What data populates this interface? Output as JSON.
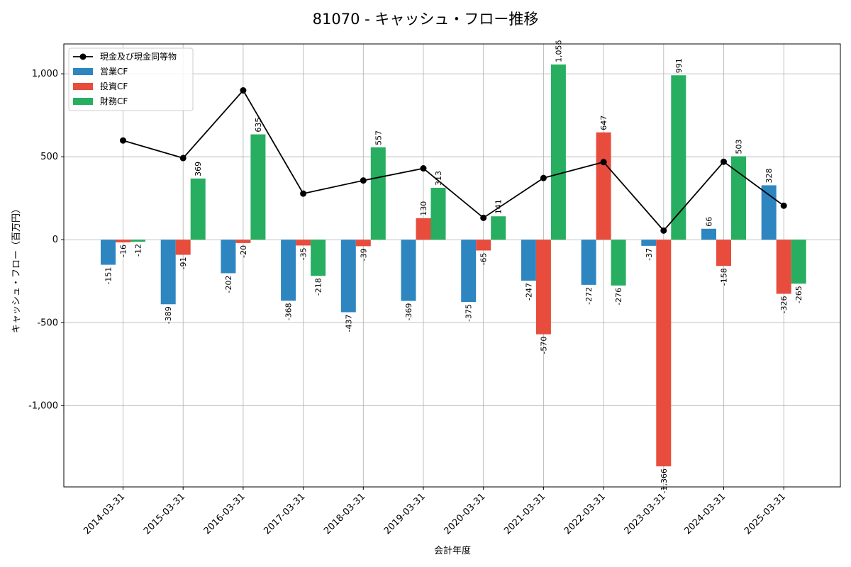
{
  "chart_data": {
    "type": "bar",
    "title": "81070 - キャッシュ・フロー推移",
    "xlabel": "会計年度",
    "ylabel": "キャッシュ・フロー（百万円）",
    "categories": [
      "2014-03-31",
      "2015-03-31",
      "2016-03-31",
      "2017-03-31",
      "2018-03-31",
      "2019-03-31",
      "2020-03-31",
      "2021-03-31",
      "2022-03-31",
      "2023-03-31",
      "2024-03-31",
      "2025-03-31"
    ],
    "ylim": [
      -1490,
      1180
    ],
    "yticks": [
      1000,
      500,
      0,
      -500,
      -1000
    ],
    "ytick_labels": [
      "1,000",
      "500",
      "0",
      "-500",
      "-1,000"
    ],
    "grid": true,
    "legend_position": "top-left",
    "series": [
      {
        "name": "営業CF",
        "color": "#2e86c1",
        "values": [
          -151,
          -389,
          -202,
          -368,
          -437,
          -369,
          -375,
          -247,
          -272,
          -37,
          66,
          328
        ],
        "labels": [
          "-151",
          "-389",
          "-202",
          "-368",
          "-437",
          "-369",
          "-375",
          "-247",
          "-272",
          "-37",
          "66",
          "328"
        ]
      },
      {
        "name": "投資CF",
        "color": "#e74c3c",
        "values": [
          -16,
          -91,
          -20,
          -35,
          -39,
          130,
          -65,
          -570,
          647,
          -1366,
          -158,
          -326
        ],
        "labels": [
          "-16",
          "-91",
          "-20",
          "-35",
          "-39",
          "130",
          "-65",
          "-570",
          "647",
          "-1,366",
          "-158",
          "-326"
        ]
      },
      {
        "name": "財務CF",
        "color": "#27ae60",
        "values": [
          -12,
          369,
          635,
          -218,
          557,
          313,
          141,
          1056,
          -276,
          991,
          503,
          -265
        ],
        "labels": [
          "-12",
          "369",
          "635",
          "-218",
          "557",
          "313",
          "141",
          "1,056",
          "-276",
          "991",
          "503",
          "-265"
        ]
      }
    ],
    "line": {
      "name": "現金及び現金同等物",
      "color": "#000000",
      "values": [
        598,
        492,
        900,
        278,
        357,
        430,
        132,
        372,
        468,
        55,
        470,
        205
      ]
    }
  }
}
